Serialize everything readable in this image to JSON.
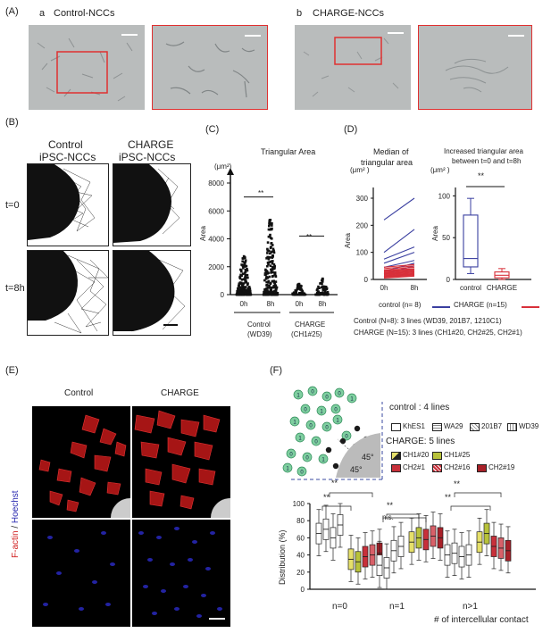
{
  "panelA": {
    "label": "(A)",
    "a_label": "a",
    "a_title": "Control-NCCs",
    "b_label": "b",
    "b_title": "CHARGE-NCCs"
  },
  "panelB": {
    "label": "(B)",
    "col1_l1": "Control",
    "col1_l2": "iPSC-NCCs",
    "col2_l1": "CHARGE",
    "col2_l2": "iPSC-NCCs",
    "row1": "t=0",
    "row2": "t=8h"
  },
  "panelC": {
    "label": "(C)",
    "title": "Triangular Area",
    "unit": "(μm²)",
    "ylabel": "Area",
    "yticks": [
      "8000",
      "6000",
      "4000",
      "2000",
      "0"
    ],
    "xticks": [
      "0h",
      "8h",
      "0h",
      "8h"
    ],
    "sig1": "**",
    "sig2": "**",
    "group1_l1": "Control",
    "group1_l2": "(WD39)",
    "group2_l1": "CHARGE",
    "group2_l2": "(CH1#25)"
  },
  "panelD": {
    "label": "(D)",
    "left_title_l1": "Median of",
    "left_title_l2": "triangular area",
    "left_unit": "(μm² )",
    "left_ylabel": "Area",
    "left_yticks": [
      "300",
      "200",
      "100",
      "0"
    ],
    "left_xticks": [
      "0h",
      "8h"
    ],
    "right_title_l1": "Increased triangular area",
    "right_title_l2": "between t=0 and t=8h",
    "right_unit": "(μm² )",
    "right_ylabel": "Area",
    "right_yticks": [
      "100",
      "50",
      "0"
    ],
    "right_xticks": [
      "control",
      "CHARGE"
    ],
    "sig": "**",
    "legend_control": "control  (n= 8)",
    "legend_charge": "CHARGE (n=15)",
    "note1": "Control (N=8): 3 lines (WD39, 201B7, 1210C1)",
    "note2": "CHARGE (N=15): 3 lines (CH1#20, CH2#25, CH2#1)",
    "colors": {
      "control": "#3a3fa0",
      "charge": "#d8303a"
    }
  },
  "panelE": {
    "label": "(E)",
    "col1": "Control",
    "col2": "CHARGE",
    "side_label_red": "F-actin",
    "side_label_sep": " / ",
    "side_label_blue": "Hoechst"
  },
  "panelF": {
    "label": "(F)",
    "control_title": "control : 4 lines",
    "control_lines": [
      "KhES1",
      "WA29",
      "201B7",
      "WD39"
    ],
    "charge_title": "CHARGE: 5 lines",
    "charge_lines": [
      "CH1#20",
      "CH1#25",
      "CH2#1",
      "CH2#16",
      "CH2#19"
    ],
    "angle1": "45°",
    "angle2": "45°",
    "diagram_numbers": [
      "1",
      "0",
      "0",
      "0",
      "1",
      "0",
      "1",
      "0",
      "1",
      "0",
      "0",
      "1",
      "0",
      "0",
      "0",
      "1",
      "1",
      "0",
      "1",
      "0"
    ],
    "ylabel": "Distribution (%)",
    "yticks": [
      "100",
      "80",
      "60",
      "40",
      "20",
      "0"
    ],
    "groups": [
      "n=0",
      "n=1",
      "n>1"
    ],
    "xlabel": "# of intercellular contact",
    "sig_n0_a": "**",
    "sig_n0_b": "**",
    "sig_n1_a": "n.s.",
    "sig_n1_b": "**",
    "sig_n2_a": "**",
    "sig_n2_b": "**"
  },
  "chart_data": [
    {
      "type": "scatter",
      "title": "Triangular Area",
      "ylabel": "Area",
      "ylim": [
        0,
        8000
      ],
      "categories": [
        "Control (WD39) 0h",
        "Control (WD39) 8h",
        "CHARGE (CH1#25) 0h",
        "CHARGE (CH1#25) 8h"
      ],
      "approx_max": [
        3000,
        5500,
        800,
        1200
      ]
    },
    {
      "type": "line",
      "title": "Median of triangular area",
      "ylabel": "Area",
      "ylim": [
        0,
        300
      ],
      "x": [
        "0h",
        "8h"
      ],
      "series": [
        {
          "name": "control (n= 8)",
          "lines": [
            [
              220,
              300
            ],
            [
              100,
              185
            ],
            [
              75,
              120
            ],
            [
              60,
              100
            ],
            [
              45,
              70
            ],
            [
              30,
              60
            ],
            [
              20,
              50
            ],
            [
              10,
              40
            ]
          ]
        },
        {
          "name": "CHARGE (n=15)",
          "lines": [
            [
              45,
              55
            ],
            [
              40,
              50
            ],
            [
              35,
              45
            ],
            [
              32,
              40
            ],
            [
              30,
              38
            ],
            [
              28,
              35
            ],
            [
              25,
              32
            ],
            [
              23,
              30
            ],
            [
              20,
              28
            ],
            [
              18,
              25
            ],
            [
              15,
              22
            ],
            [
              12,
              20
            ],
            [
              10,
              18
            ],
            [
              8,
              15
            ],
            [
              5,
              12
            ]
          ]
        }
      ]
    },
    {
      "type": "box",
      "title": "Increased triangular area between t=0 and t=8h",
      "ylabel": "Area",
      "ylim": [
        0,
        110
      ],
      "categories": [
        "control",
        "CHARGE"
      ],
      "boxes": [
        {
          "name": "control",
          "min": 7,
          "q1": 15,
          "median": 25,
          "q3": 77,
          "max": 97
        },
        {
          "name": "CHARGE",
          "min": 0,
          "q1": 2,
          "median": 5,
          "q3": 9,
          "max": 13
        }
      ]
    },
    {
      "type": "box",
      "ylabel": "Distribution (%)",
      "xlabel": "# of intercellular contact",
      "ylim": [
        0,
        100
      ],
      "categories": [
        "n=0",
        "n=1",
        "n>1"
      ],
      "series_names": [
        "KhES1",
        "WA29",
        "201B7",
        "WD39",
        "CH1#20",
        "CH1#25",
        "CH2#1",
        "CH2#16",
        "CH2#19"
      ],
      "medians": {
        "n=0": [
          65,
          70,
          60,
          75,
          35,
          32,
          38,
          40,
          42
        ],
        "n=1": [
          28,
          25,
          45,
          50,
          55,
          60,
          58,
          62,
          60
        ],
        "n>1": [
          40,
          42,
          38,
          40,
          55,
          65,
          50,
          48,
          45
        ]
      }
    }
  ]
}
